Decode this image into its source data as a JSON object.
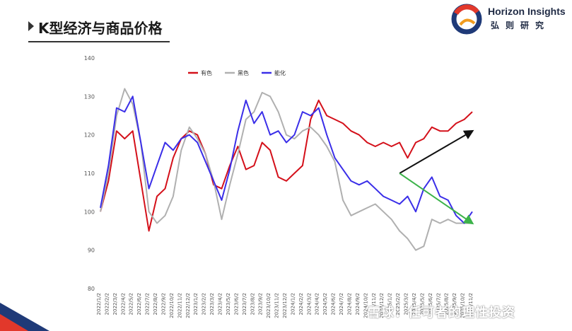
{
  "page": {
    "title": "K型经济与商品价格"
  },
  "brand": {
    "name_en": "Horizon Insights",
    "name_cn": "弘则研究"
  },
  "watermark": {
    "text": "雪球：任可者的理性投资"
  },
  "colors": {
    "nonferrous": "#d4101a",
    "black": "#b0b0b0",
    "energy": "#3a2ee8",
    "up_arrow": "#111111",
    "down_arrow": "#3cb34a"
  },
  "chart_data": {
    "type": "line",
    "title": "",
    "xlabel": "",
    "ylabel": "",
    "ylim": [
      80,
      140
    ],
    "yticks": [
      80,
      90,
      100,
      110,
      120,
      130,
      140
    ],
    "grid": false,
    "legend_position": "top-left",
    "x": [
      "2022/1/2",
      "2022/2/2",
      "2022/3/2",
      "2022/4/2",
      "2022/5/2",
      "2022/6/2",
      "2022/7/2",
      "2022/8/2",
      "2022/9/2",
      "2022/10/2",
      "2022/11/2",
      "2022/12/2",
      "2023/1/2",
      "2023/2/2",
      "2023/3/2",
      "2023/4/2",
      "2023/5/2",
      "2023/6/2",
      "2023/7/2",
      "2023/8/2",
      "2023/9/2",
      "2023/10/2",
      "2023/11/2",
      "2023/12/2",
      "2024/1/2",
      "2024/2/2",
      "2024/3/2",
      "2024/4/2",
      "2024/5/2",
      "2024/6/2",
      "2024/7/2",
      "2024/8/2",
      "2024/9/2",
      "2024/10/2",
      "2024/11/2",
      "2024/12/2",
      "2025/1/2",
      "2025/2/2",
      "2025/3/2",
      "2025/4/2",
      "2025/5/2",
      "2025/6/2",
      "2025/7/2",
      "2025/8/2",
      "2025/9/2",
      "2025/10/2",
      "2025/11/2"
    ],
    "series": [
      {
        "name": "有色",
        "values": [
          100,
          108,
          121,
          119,
          121,
          108,
          95,
          104,
          106,
          114,
          119,
          121,
          120,
          115,
          107,
          106,
          112,
          117,
          111,
          112,
          118,
          116,
          109,
          108,
          110,
          112,
          124,
          129,
          125,
          124,
          123,
          121,
          120,
          118,
          117,
          118,
          117,
          118,
          114,
          118,
          119,
          122,
          121,
          121,
          123,
          124,
          126
        ]
      },
      {
        "name": "黑色",
        "values": [
          100,
          110,
          125,
          132,
          128,
          118,
          100,
          97,
          99,
          104,
          116,
          122,
          119,
          115,
          108,
          98,
          107,
          115,
          124,
          126,
          131,
          130,
          126,
          120,
          119,
          121,
          122,
          120,
          117,
          113,
          103,
          99,
          100,
          101,
          102,
          100,
          98,
          95,
          93,
          90,
          91,
          98,
          97,
          98,
          97,
          97,
          97
        ]
      },
      {
        "name": "能化",
        "values": [
          101,
          112,
          127,
          126,
          130,
          118,
          106,
          112,
          118,
          116,
          119,
          120,
          118,
          113,
          108,
          103,
          111,
          121,
          129,
          123,
          126,
          120,
          121,
          118,
          120,
          126,
          125,
          127,
          120,
          114,
          111,
          108,
          107,
          108,
          106,
          104,
          103,
          102,
          104,
          100,
          106,
          109,
          104,
          103,
          99,
          97,
          100
        ]
      }
    ],
    "annotations": [
      {
        "type": "arrow",
        "direction": "up",
        "from": {
          "x": "2025/2/2",
          "y": 110
        },
        "to": {
          "x": "2025/11/2",
          "y": 121
        },
        "color": "up_arrow"
      },
      {
        "type": "arrow",
        "direction": "down",
        "from": {
          "x": "2025/2/2",
          "y": 110
        },
        "to": {
          "x": "2025/11/2",
          "y": 97
        },
        "color": "down_arrow"
      }
    ]
  }
}
